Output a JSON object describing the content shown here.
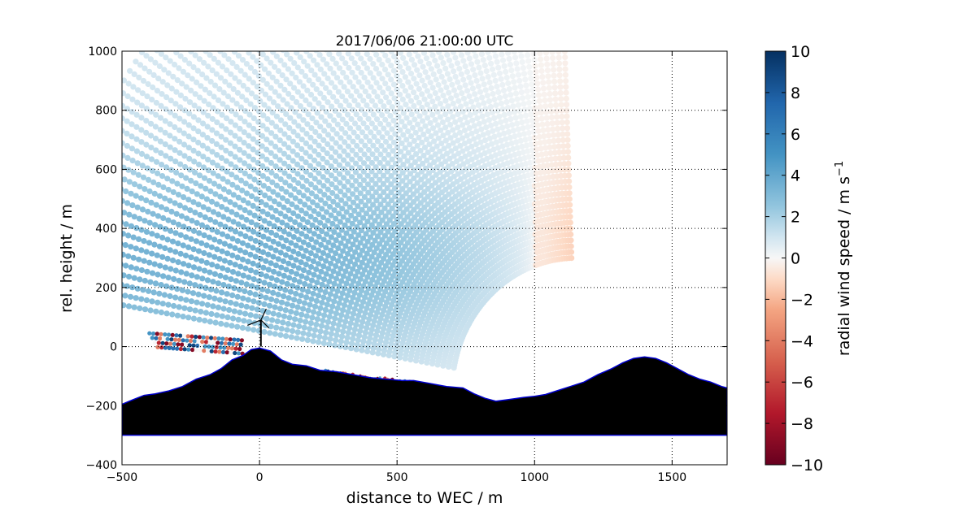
{
  "chart_data": {
    "type": "scatter",
    "title": "2017/06/06 21:00:00 UTC",
    "xlabel": "distance to WEC / m",
    "ylabel": "rel. height / m",
    "xlim": [
      -500,
      1700
    ],
    "ylim": [
      -400,
      1000
    ],
    "xticks": [
      -500,
      0,
      500,
      1000,
      1500
    ],
    "yticks": [
      -400,
      -200,
      0,
      200,
      400,
      600,
      800,
      1000
    ],
    "grid": true,
    "colormap": "RdBu",
    "colorbar": {
      "label_main": "radial wind speed / m s",
      "label_sup": "−1",
      "range": [
        -10,
        10
      ],
      "ticks": [
        10,
        8,
        6,
        4,
        2,
        0,
        -2,
        -4,
        -6,
        -8,
        -10
      ],
      "stops": [
        {
          "v": -10,
          "color": "#67001f"
        },
        {
          "v": -7.5,
          "color": "#b2182b"
        },
        {
          "v": -5,
          "color": "#d6604d"
        },
        {
          "v": -2.5,
          "color": "#f4a582"
        },
        {
          "v": -1,
          "color": "#fddbc7"
        },
        {
          "v": 0,
          "color": "#f7f7f7"
        },
        {
          "v": 1,
          "color": "#d1e5f0"
        },
        {
          "v": 2.5,
          "color": "#92c5de"
        },
        {
          "v": 5,
          "color": "#4393c3"
        },
        {
          "v": 7.5,
          "color": "#2166ac"
        },
        {
          "v": 10,
          "color": "#053061"
        }
      ]
    },
    "scan": {
      "origin": [
        1150,
        -150
      ],
      "range_min": 450,
      "range_max": 1950,
      "elevation_deg": [
        10,
        88
      ]
    },
    "turbine": {
      "x": 5,
      "y": 0,
      "hub_height": 100
    },
    "terrain": {
      "x": [
        -500,
        -460,
        -420,
        -380,
        -330,
        -280,
        -230,
        -180,
        -140,
        -100,
        -60,
        -30,
        0,
        40,
        80,
        120,
        170,
        220,
        280,
        340,
        400,
        460,
        520,
        560,
        620,
        680,
        740,
        780,
        820,
        860,
        900,
        960,
        1000,
        1040,
        1080,
        1130,
        1180,
        1230,
        1280,
        1320,
        1360,
        1400,
        1440,
        1480,
        1520,
        1560,
        1600,
        1640,
        1680,
        1700
      ],
      "y": [
        -195,
        -180,
        -165,
        -160,
        -150,
        -135,
        -110,
        -95,
        -75,
        -45,
        -30,
        -10,
        -5,
        -15,
        -45,
        -60,
        -65,
        -80,
        -85,
        -95,
        -105,
        -110,
        -115,
        -115,
        -125,
        -135,
        -140,
        -160,
        -175,
        -185,
        -180,
        -172,
        -168,
        -162,
        -150,
        -135,
        -120,
        -95,
        -75,
        -55,
        -40,
        -35,
        -40,
        -55,
        -75,
        -95,
        -110,
        -120,
        -135,
        -140
      ],
      "base": -300
    }
  }
}
